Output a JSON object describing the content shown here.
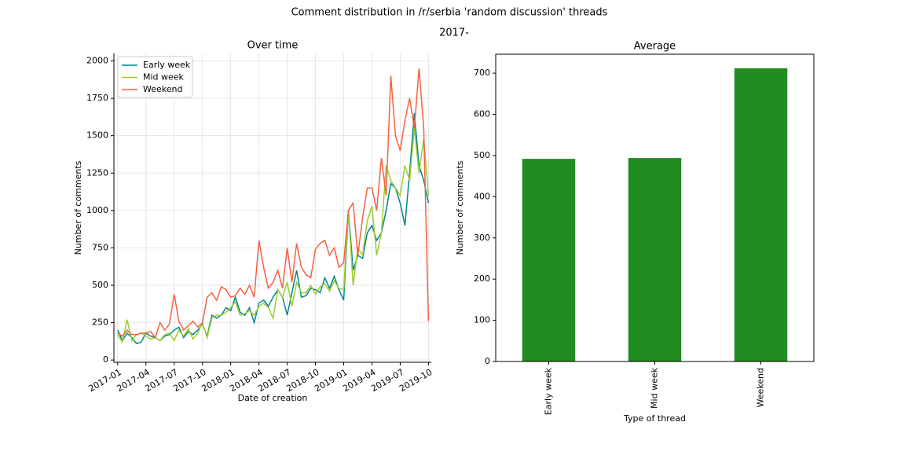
{
  "title": "Comment distribution in /r/serbia 'random discussion' threads",
  "subtitle": "2017-",
  "chart_data": [
    {
      "type": "line",
      "title": "Over time",
      "xlabel": "Date of creation",
      "ylabel": "Number of comments",
      "x": [
        0,
        0.5,
        1,
        1.5,
        2,
        2.5,
        3,
        3.5,
        4,
        4.5,
        5,
        5.5,
        6,
        6.5,
        7,
        7.5,
        8,
        8.5,
        9,
        9.5,
        10,
        10.5,
        11,
        11.5,
        12,
        12.5,
        13,
        13.5,
        14,
        14.5,
        15,
        15.5,
        16,
        16.5,
        17,
        17.5,
        18,
        18.5,
        19,
        19.5,
        20,
        20.5,
        21,
        21.5,
        22,
        22.5,
        23,
        23.5,
        24,
        24.5,
        25,
        25.5,
        26,
        26.5,
        27,
        27.5,
        28,
        28.5,
        29,
        29.5,
        30,
        30.5,
        31,
        31.5,
        32,
        32.5,
        33
      ],
      "series": [
        {
          "name": "Early week",
          "color": "#00868b",
          "values": [
            200,
            130,
            180,
            150,
            110,
            120,
            180,
            160,
            150,
            130,
            160,
            170,
            200,
            220,
            150,
            190,
            170,
            200,
            240,
            160,
            300,
            280,
            300,
            350,
            330,
            420,
            320,
            300,
            350,
            250,
            380,
            400,
            360,
            420,
            470,
            420,
            300,
            450,
            600,
            420,
            430,
            480,
            470,
            450,
            550,
            480,
            560,
            470,
            400,
            1000,
            600,
            700,
            680,
            850,
            900,
            800,
            850,
            1000,
            1180,
            1150,
            1050,
            900,
            1250,
            1650,
            1300,
            1200,
            1050
          ]
        },
        {
          "name": "Mid week",
          "color": "#9acd32",
          "values": [
            170,
            120,
            270,
            130,
            170,
            180,
            160,
            140,
            150,
            130,
            170,
            180,
            130,
            200,
            160,
            210,
            140,
            180,
            250,
            150,
            280,
            300,
            300,
            320,
            350,
            390,
            300,
            310,
            330,
            300,
            360,
            380,
            350,
            280,
            470,
            420,
            520,
            360,
            520,
            450,
            450,
            500,
            440,
            490,
            510,
            460,
            530,
            480,
            470,
            1000,
            500,
            750,
            700,
            930,
            1030,
            700,
            850,
            1300,
            1200,
            1150,
            1100,
            1300,
            1200,
            1550,
            1250,
            1480,
            1100
          ]
        },
        {
          "name": "Weekend",
          "color": "#f4613f",
          "values": [
            180,
            160,
            200,
            170,
            170,
            180,
            180,
            190,
            150,
            250,
            200,
            240,
            440,
            260,
            200,
            230,
            260,
            220,
            250,
            420,
            450,
            400,
            490,
            470,
            420,
            430,
            480,
            440,
            500,
            420,
            800,
            620,
            480,
            520,
            600,
            480,
            750,
            520,
            780,
            620,
            570,
            550,
            740,
            780,
            800,
            700,
            750,
            620,
            650,
            1000,
            1050,
            700,
            950,
            1150,
            1150,
            1000,
            1350,
            1100,
            1900,
            1500,
            1400,
            1600,
            1750,
            1550,
            1950,
            1550,
            260
          ]
        }
      ],
      "xlim": [
        -0.4,
        33.3
      ],
      "xticks": [
        {
          "value": 0,
          "label": "2017-01"
        },
        {
          "value": 3,
          "label": "2017-04"
        },
        {
          "value": 6,
          "label": "2017-07"
        },
        {
          "value": 9,
          "label": "2017-10"
        },
        {
          "value": 12,
          "label": "2018-01"
        },
        {
          "value": 15,
          "label": "2018-04"
        },
        {
          "value": 18,
          "label": "2018-07"
        },
        {
          "value": 21,
          "label": "2018-10"
        },
        {
          "value": 24,
          "label": "2019-01"
        },
        {
          "value": 27,
          "label": "2019-04"
        },
        {
          "value": 30,
          "label": "2019-07"
        },
        {
          "value": 33,
          "label": "2019-10"
        }
      ],
      "ylim": [
        -15,
        2050
      ],
      "yticks": [
        0,
        250,
        500,
        750,
        1000,
        1250,
        1500,
        1750,
        2000
      ],
      "grid": true,
      "legend": "upper left"
    },
    {
      "type": "bar",
      "title": "Average",
      "xlabel": "Type of thread",
      "ylabel": "Number of comments",
      "categories": [
        "Early week",
        "Mid week",
        "Weekend"
      ],
      "values": [
        492,
        494,
        712
      ],
      "color": "#228b22",
      "ylim": [
        0,
        746
      ],
      "yticks": [
        0,
        100,
        200,
        300,
        400,
        500,
        600,
        700
      ],
      "grid": false
    }
  ]
}
